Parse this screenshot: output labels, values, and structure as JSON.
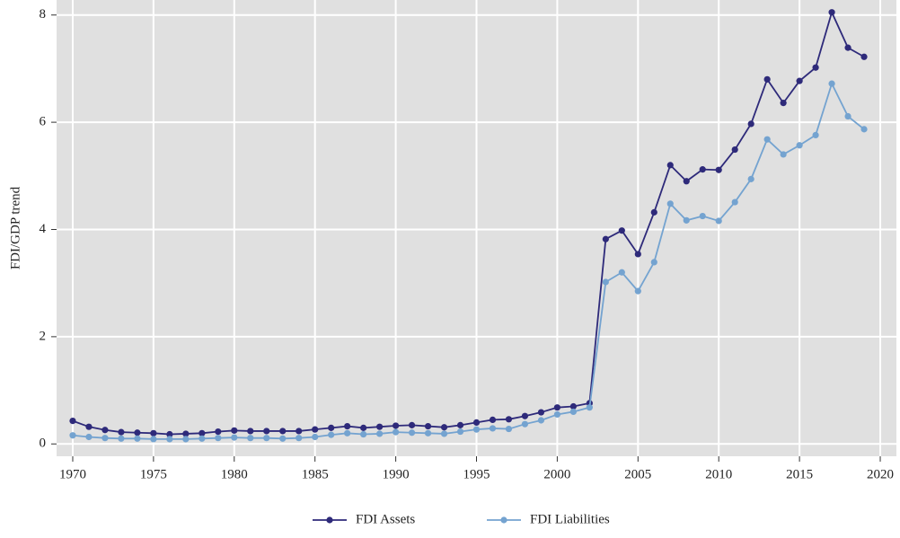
{
  "chart_data": {
    "type": "line",
    "ylabel": "FDI/GDP trend",
    "x": [
      1970,
      1971,
      1972,
      1973,
      1974,
      1975,
      1976,
      1977,
      1978,
      1979,
      1980,
      1981,
      1982,
      1983,
      1984,
      1985,
      1986,
      1987,
      1988,
      1989,
      1990,
      1991,
      1992,
      1993,
      1994,
      1995,
      1996,
      1997,
      1998,
      1999,
      2000,
      2001,
      2002,
      2003,
      2004,
      2005,
      2006,
      2007,
      2008,
      2009,
      2010,
      2011,
      2012,
      2013,
      2014,
      2015,
      2016,
      2017,
      2018,
      2019
    ],
    "series": [
      {
        "name": "FDI Assets",
        "color": "#2e2a7a",
        "values": [
          0.43,
          0.32,
          0.26,
          0.22,
          0.21,
          0.2,
          0.18,
          0.19,
          0.2,
          0.23,
          0.25,
          0.24,
          0.24,
          0.24,
          0.24,
          0.27,
          0.3,
          0.33,
          0.3,
          0.32,
          0.34,
          0.35,
          0.33,
          0.31,
          0.35,
          0.4,
          0.45,
          0.46,
          0.52,
          0.59,
          0.68,
          0.7,
          0.76,
          3.82,
          3.98,
          3.54,
          4.32,
          5.2,
          4.9,
          5.12,
          5.11,
          5.49,
          5.97,
          6.8,
          6.36,
          6.77,
          7.02,
          8.05,
          7.39,
          7.22
        ]
      },
      {
        "name": "FDI Liabilities",
        "color": "#74a3d0",
        "values": [
          0.16,
          0.13,
          0.11,
          0.1,
          0.1,
          0.09,
          0.09,
          0.09,
          0.1,
          0.11,
          0.12,
          0.11,
          0.11,
          0.1,
          0.11,
          0.13,
          0.17,
          0.2,
          0.18,
          0.19,
          0.22,
          0.21,
          0.2,
          0.19,
          0.23,
          0.27,
          0.29,
          0.28,
          0.37,
          0.44,
          0.55,
          0.6,
          0.68,
          3.02,
          3.2,
          2.85,
          3.39,
          4.48,
          4.17,
          4.25,
          4.16,
          4.51,
          4.94,
          5.68,
          5.4,
          5.57,
          5.76,
          6.72,
          6.11,
          5.87
        ]
      }
    ],
    "xlim": [
      1969,
      2021
    ],
    "xticks": [
      1970,
      1975,
      1980,
      1985,
      1990,
      1995,
      2000,
      2005,
      2010,
      2015,
      2020
    ],
    "ylim": [
      -0.23,
      8.28
    ],
    "yticks": [
      0,
      2,
      4,
      6,
      8
    ],
    "grid": true,
    "legend": "bottom"
  }
}
